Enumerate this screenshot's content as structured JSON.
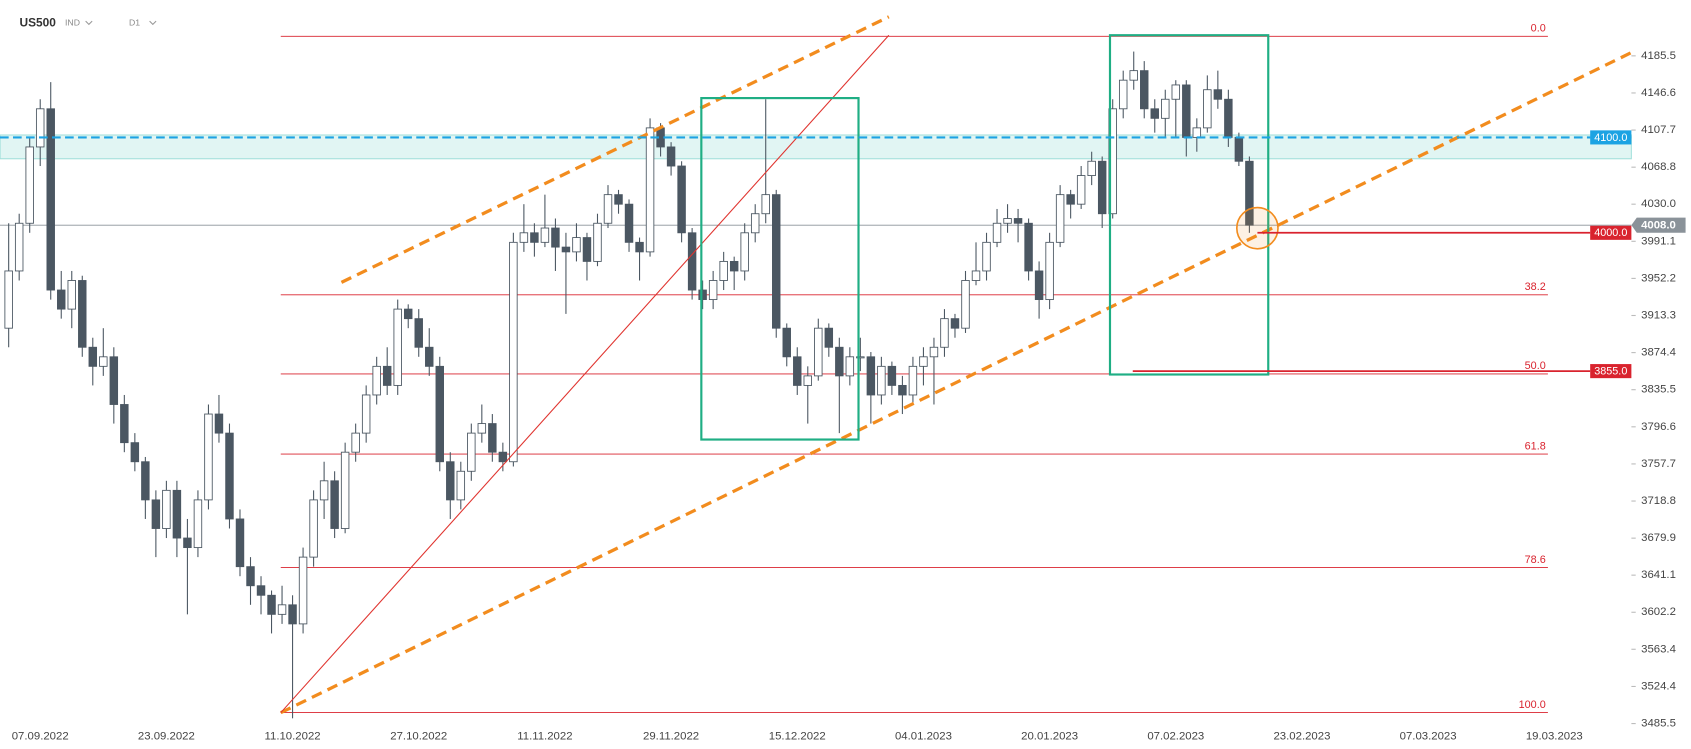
{
  "chart_data": {
    "type": "candlestick",
    "symbol": "US500",
    "market": "IND",
    "interval": "D1",
    "categories": [
      null,
      null,
      null,
      "07.09.2022",
      null,
      null,
      null,
      null,
      null,
      null,
      null,
      null,
      null,
      null,
      null,
      "23.09.2022",
      null,
      null,
      null,
      null,
      null,
      null,
      null,
      null,
      null,
      null,
      null,
      "11.10.2022",
      null,
      null,
      null,
      null,
      null,
      null,
      null,
      null,
      null,
      null,
      null,
      "27.10.2022",
      null,
      null,
      null,
      null,
      null,
      null,
      null,
      null,
      null,
      null,
      null,
      "11.11.2022",
      null,
      null,
      null,
      null,
      null,
      null,
      null,
      null,
      null,
      null,
      null,
      "29.11.2022",
      null,
      null,
      null,
      null,
      null,
      null,
      null,
      null,
      null,
      null,
      null,
      "15.12.2022",
      null,
      null,
      null,
      null,
      null,
      null,
      null,
      null,
      null,
      null,
      null,
      "04.01.2023",
      null,
      null,
      null,
      null,
      null,
      null,
      null,
      null,
      null,
      null,
      null,
      "20.01.2023",
      null,
      null,
      null,
      null,
      null,
      null,
      null,
      null,
      null,
      null,
      null,
      "07.02.2023",
      null,
      null,
      null,
      null,
      null,
      null,
      null,
      null,
      null,
      null,
      null,
      "23.02.2023",
      null,
      null,
      null,
      null,
      null,
      null,
      null,
      null,
      null,
      null,
      null,
      "07.03.2023",
      null,
      null,
      null,
      null,
      null,
      null,
      null,
      null,
      null,
      null,
      null,
      "19.03.2023"
    ],
    "candles": [
      [
        3900,
        4010,
        3880,
        3960
      ],
      [
        3960,
        4020,
        3950,
        4010
      ],
      [
        4010,
        4100,
        4000,
        4090
      ],
      [
        4090,
        4140,
        4070,
        4130
      ],
      [
        4130,
        4158,
        3930,
        3940
      ],
      [
        3940,
        3960,
        3910,
        3920
      ],
      [
        3920,
        3960,
        3900,
        3950
      ],
      [
        3950,
        3955,
        3870,
        3880
      ],
      [
        3880,
        3890,
        3840,
        3860
      ],
      [
        3860,
        3900,
        3850,
        3870
      ],
      [
        3870,
        3880,
        3800,
        3820
      ],
      [
        3820,
        3830,
        3770,
        3780
      ],
      [
        3780,
        3790,
        3750,
        3760
      ],
      [
        3760,
        3765,
        3700,
        3720
      ],
      [
        3720,
        3730,
        3660,
        3690
      ],
      [
        3690,
        3740,
        3680,
        3730
      ],
      [
        3730,
        3740,
        3660,
        3680
      ],
      [
        3680,
        3700,
        3600,
        3670
      ],
      [
        3670,
        3730,
        3660,
        3720
      ],
      [
        3720,
        3820,
        3710,
        3810
      ],
      [
        3810,
        3830,
        3780,
        3790
      ],
      [
        3790,
        3800,
        3690,
        3700
      ],
      [
        3700,
        3710,
        3640,
        3650
      ],
      [
        3650,
        3660,
        3610,
        3630
      ],
      [
        3630,
        3640,
        3600,
        3620
      ],
      [
        3620,
        3625,
        3580,
        3600
      ],
      [
        3600,
        3630,
        3590,
        3610
      ],
      [
        3610,
        3620,
        3491,
        3590
      ],
      [
        3590,
        3670,
        3580,
        3660
      ],
      [
        3660,
        3730,
        3650,
        3720
      ],
      [
        3720,
        3760,
        3700,
        3740
      ],
      [
        3740,
        3750,
        3680,
        3690
      ],
      [
        3690,
        3780,
        3685,
        3770
      ],
      [
        3770,
        3800,
        3760,
        3790
      ],
      [
        3790,
        3840,
        3780,
        3830
      ],
      [
        3830,
        3870,
        3820,
        3860
      ],
      [
        3860,
        3880,
        3830,
        3840
      ],
      [
        3840,
        3930,
        3830,
        3920
      ],
      [
        3920,
        3925,
        3900,
        3910
      ],
      [
        3910,
        3920,
        3870,
        3880
      ],
      [
        3880,
        3900,
        3850,
        3860
      ],
      [
        3860,
        3870,
        3750,
        3760
      ],
      [
        3760,
        3770,
        3700,
        3720
      ],
      [
        3720,
        3760,
        3710,
        3750
      ],
      [
        3750,
        3800,
        3740,
        3790
      ],
      [
        3790,
        3820,
        3780,
        3800
      ],
      [
        3800,
        3810,
        3760,
        3770
      ],
      [
        3770,
        3780,
        3750,
        3760
      ],
      [
        3760,
        4000,
        3755,
        3990
      ],
      [
        3990,
        4030,
        3980,
        4000
      ],
      [
        4000,
        4010,
        3975,
        3990
      ],
      [
        3990,
        4040,
        3985,
        4005
      ],
      [
        4005,
        4015,
        3960,
        3985
      ],
      [
        3985,
        4000,
        3915,
        3980
      ],
      [
        3980,
        4010,
        3970,
        3995
      ],
      [
        3995,
        4000,
        3950,
        3970
      ],
      [
        3970,
        4020,
        3965,
        4010
      ],
      [
        4010,
        4050,
        4005,
        4040
      ],
      [
        4040,
        4045,
        4020,
        4030
      ],
      [
        4030,
        4035,
        3980,
        3990
      ],
      [
        3990,
        3995,
        3950,
        3980
      ],
      [
        3980,
        4120,
        3975,
        4110
      ],
      [
        4110,
        4115,
        4080,
        4090
      ],
      [
        4090,
        4095,
        4060,
        4070
      ],
      [
        4070,
        4075,
        3990,
        4000
      ],
      [
        4000,
        4005,
        3930,
        3940
      ],
      [
        3940,
        3950,
        3920,
        3930
      ],
      [
        3930,
        3960,
        3920,
        3950
      ],
      [
        3950,
        3980,
        3940,
        3970
      ],
      [
        3970,
        3975,
        3940,
        3960
      ],
      [
        3960,
        4010,
        3950,
        4000
      ],
      [
        4000,
        4030,
        3990,
        4020
      ],
      [
        4020,
        4140,
        4010,
        4040
      ],
      [
        4040,
        4045,
        3890,
        3900
      ],
      [
        3900,
        3905,
        3860,
        3870
      ],
      [
        3870,
        3880,
        3830,
        3840
      ],
      [
        3840,
        3860,
        3800,
        3850
      ],
      [
        3850,
        3910,
        3845,
        3900
      ],
      [
        3900,
        3905,
        3870,
        3880
      ],
      [
        3880,
        3890,
        3790,
        3850
      ],
      [
        3850,
        3880,
        3840,
        3870
      ],
      [
        3870,
        3890,
        3855,
        3870
      ],
      [
        3870,
        3875,
        3800,
        3830
      ],
      [
        3830,
        3870,
        3820,
        3860
      ],
      [
        3860,
        3865,
        3830,
        3840
      ],
      [
        3840,
        3850,
        3810,
        3830
      ],
      [
        3830,
        3870,
        3820,
        3860
      ],
      [
        3860,
        3880,
        3840,
        3870
      ],
      [
        3870,
        3890,
        3820,
        3880
      ],
      [
        3880,
        3920,
        3870,
        3910
      ],
      [
        3910,
        3915,
        3890,
        3900
      ],
      [
        3900,
        3960,
        3895,
        3950
      ],
      [
        3950,
        3990,
        3945,
        3960
      ],
      [
        3960,
        4000,
        3950,
        3990
      ],
      [
        3990,
        4025,
        3985,
        4010
      ],
      [
        4010,
        4030,
        4000,
        4015
      ],
      [
        4015,
        4025,
        3990,
        4010
      ],
      [
        4010,
        4015,
        3950,
        3960
      ],
      [
        3960,
        3970,
        3910,
        3930
      ],
      [
        3930,
        4000,
        3920,
        3990
      ],
      [
        3990,
        4050,
        3985,
        4040
      ],
      [
        4040,
        4045,
        4015,
        4030
      ],
      [
        4030,
        4070,
        4025,
        4060
      ],
      [
        4060,
        4085,
        4050,
        4075
      ],
      [
        4075,
        4080,
        4005,
        4020
      ],
      [
        4020,
        4140,
        4015,
        4130
      ],
      [
        4130,
        4170,
        4120,
        4160
      ],
      [
        4160,
        4190,
        4150,
        4170
      ],
      [
        4170,
        4180,
        4120,
        4130
      ],
      [
        4130,
        4140,
        4105,
        4120
      ],
      [
        4120,
        4150,
        4100,
        4140
      ],
      [
        4140,
        4160,
        4100,
        4155
      ],
      [
        4155,
        4160,
        4080,
        4100
      ],
      [
        4100,
        4120,
        4085,
        4110
      ],
      [
        4110,
        4165,
        4105,
        4150
      ],
      [
        4150,
        4170,
        4130,
        4140
      ],
      [
        4140,
        4150,
        4090,
        4100
      ],
      [
        4100,
        4105,
        4070,
        4075
      ],
      [
        4075,
        4080,
        4000,
        4008
      ],
      null,
      null,
      null,
      null,
      null,
      null,
      null,
      null,
      null,
      null,
      null,
      null,
      null,
      null,
      null,
      null,
      null,
      null,
      null,
      null,
      null,
      null,
      null,
      null,
      null,
      null,
      null,
      null,
      null
    ],
    "up_color": "#ffffff",
    "down_color": "#4b5762",
    "wick_color": "#4b5762",
    "ylim": [
      3484.4,
      4243.5
    ],
    "yticks": [
      3485.5,
      3524.4,
      3563.4,
      3602.2,
      3641.1,
      3679.9,
      3718.8,
      3757.7,
      3796.6,
      3835.5,
      3874.4,
      3913.3,
      3952.2,
      3991.1,
      {
        "value": 4030,
        "label": "4030.0"
      },
      4068.8,
      4107.7,
      4146.6,
      4185.5
    ],
    "fib_levels": [
      {
        "value": 4206,
        "label": "0.0"
      },
      {
        "value": 3935,
        "label": "38.2"
      },
      {
        "value": 3852,
        "label": "50.0"
      },
      {
        "value": 3768,
        "label": "61.8"
      },
      {
        "value": 3649,
        "label": "78.6"
      },
      {
        "value": 3497,
        "label": "100.0"
      }
    ],
    "fib_color": "#d9232e",
    "levels": [
      {
        "value": 4100,
        "label": "4100.0",
        "color": "#1ca3e3"
      },
      {
        "value": 4000,
        "label": "4000.0",
        "color": "#d9232e"
      },
      {
        "value": 3855,
        "label": "3855.0",
        "color": "#d9232e"
      }
    ],
    "last_price": {
      "value": 4008,
      "label": "4008.0",
      "color": "#8a9299"
    }
  }
}
